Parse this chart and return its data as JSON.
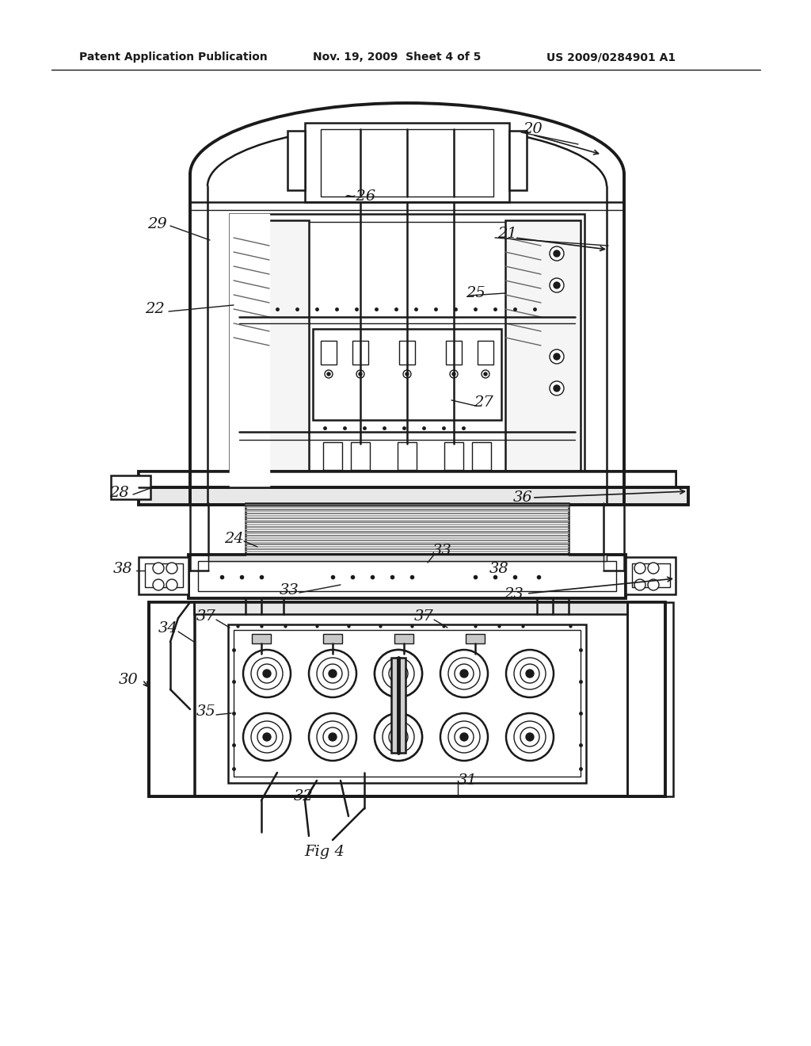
{
  "bg_color": "#ffffff",
  "line_color": "#1a1a1a",
  "header_left": "Patent Application Publication",
  "header_mid": "Nov. 19, 2009  Sheet 4 of 5",
  "header_right": "US 2009/0284901 A1",
  "fig_label": "Fig 4",
  "label_font": 14
}
